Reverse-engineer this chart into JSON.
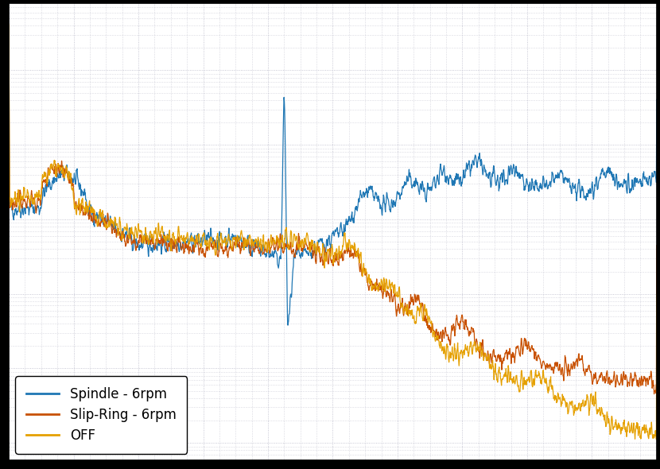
{
  "legend_labels": [
    "Spindle - 6rpm",
    "Slip-Ring - 6rpm",
    "OFF"
  ],
  "colors": [
    "#1f77b4",
    "#c85000",
    "#e5a000"
  ],
  "background_color": "#ffffff",
  "grid_color": "#b8b8c8",
  "linewidth": 0.9,
  "figsize": [
    8.3,
    5.9
  ],
  "dpi": 100,
  "n_points": 2000,
  "outer_bg": "#000000",
  "legend_fontsize": 12
}
